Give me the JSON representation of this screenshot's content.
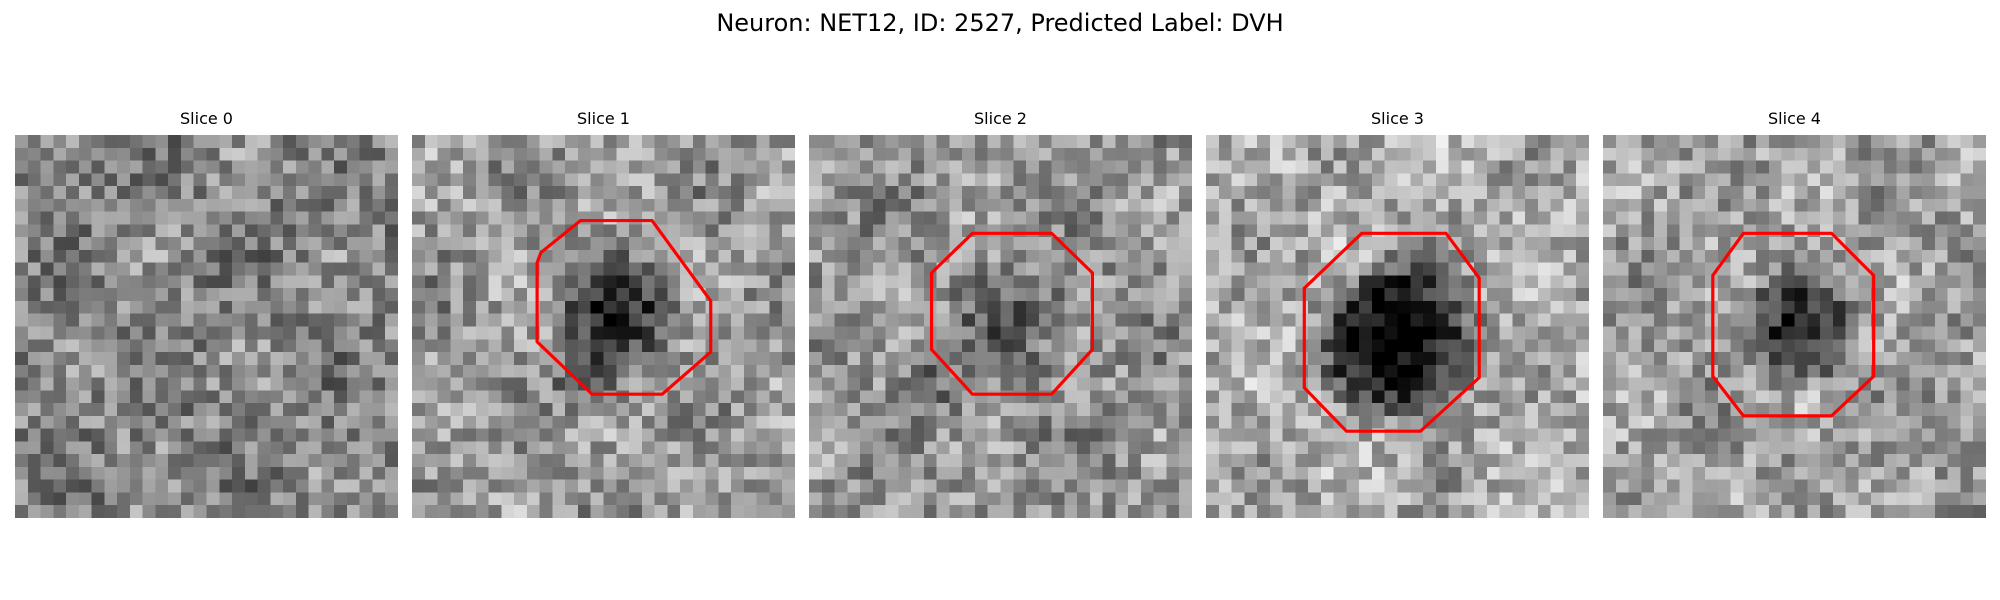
{
  "figure": {
    "title": "Neuron: NET12, ID: 2527, Predicted Label: DVH",
    "colormap": "gray",
    "outline_color": "#ff0000"
  },
  "panels": [
    {
      "title": "Slice 0",
      "has_outline": false,
      "dark_blob": null
    },
    {
      "title": "Slice 1",
      "has_outline": true,
      "dark_blob": "moderate"
    },
    {
      "title": "Slice 2",
      "has_outline": true,
      "dark_blob": "faint"
    },
    {
      "title": "Slice 3",
      "has_outline": true,
      "dark_blob": "strong"
    },
    {
      "title": "Slice 4",
      "has_outline": true,
      "dark_blob": "moderate"
    }
  ]
}
